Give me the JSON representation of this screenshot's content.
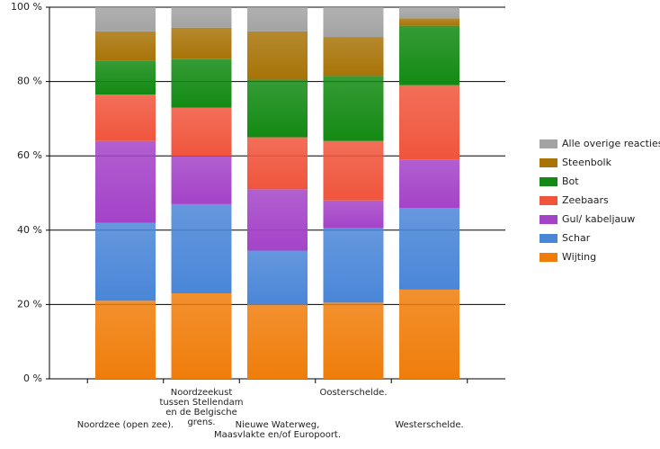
{
  "chart_data": {
    "type": "stacked_bar",
    "categories": [
      "Noordzee (open zee).",
      "Noordzeekust tussen Stellendam en de Belgische grens.",
      "Nieuwe Waterweg, Maasvlakte en/of Europoort.",
      "Oosterschelde.",
      "Westerschelde."
    ],
    "series": [
      {
        "name": "Wijting",
        "color": "#f07d0a",
        "values": [
          21,
          23,
          20,
          20.5,
          24
        ]
      },
      {
        "name": "Schar",
        "color": "#4a86d8",
        "values": [
          21,
          24,
          14.5,
          20,
          22
        ]
      },
      {
        "name": "Gul/ kabeljauw",
        "color": "#a443c8",
        "values": [
          22,
          13,
          16.5,
          7.5,
          13
        ]
      },
      {
        "name": "Zeebaars",
        "color": "#f0553c",
        "values": [
          12.5,
          13,
          14,
          16,
          20
        ]
      },
      {
        "name": "Bot",
        "color": "#138a13",
        "values": [
          9,
          13,
          15.5,
          17.5,
          16
        ]
      },
      {
        "name": "Steenbolk",
        "color": "#a87408",
        "values": [
          8,
          8.5,
          13,
          10.5,
          2
        ]
      },
      {
        "name": "Alle overige reacties",
        "color": "#a3a3a3",
        "values": [
          6.5,
          5.5,
          6.5,
          8,
          3
        ]
      }
    ],
    "ylim": [
      0,
      100
    ],
    "yticks": [
      {
        "value": 0,
        "label": "0 %"
      },
      {
        "value": 20,
        "label": "20 %"
      },
      {
        "value": 40,
        "label": "40 %"
      },
      {
        "value": 60,
        "label": "60 %"
      },
      {
        "value": 80,
        "label": "80 %"
      },
      {
        "value": 100,
        "label": "100 %"
      }
    ],
    "grid": true,
    "legend": "right"
  }
}
